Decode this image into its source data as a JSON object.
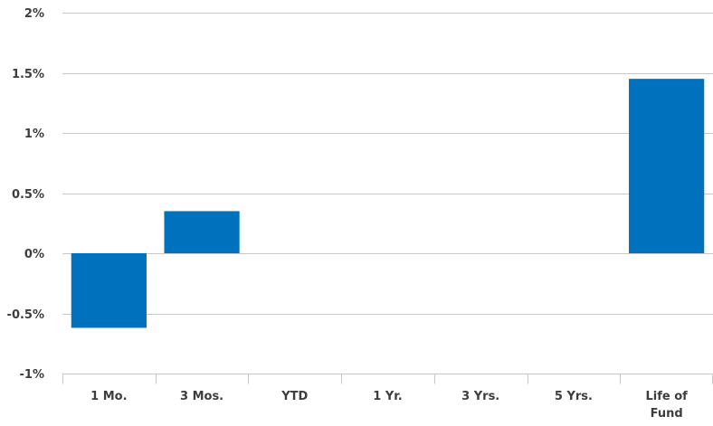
{
  "chart_data": {
    "type": "bar",
    "title": "",
    "xlabel": "",
    "ylabel": "",
    "categories": [
      "1 Mo.",
      "3 Mos.",
      "YTD",
      "1 Yr.",
      "3 Yrs.",
      "5 Yrs.",
      "Life of Fund"
    ],
    "values": [
      -0.62,
      0.35,
      null,
      null,
      null,
      null,
      1.45
    ],
    "ylim": [
      -1,
      2
    ],
    "yticks": [
      2,
      1.5,
      1,
      0.5,
      0,
      -0.5,
      -1
    ],
    "ytick_labels": [
      "2%",
      "1.5%",
      "1%",
      "0.5%",
      "0%",
      "-0.5%",
      "-1%"
    ],
    "bar_color": "#0071bc",
    "grid": true,
    "legend": "none"
  }
}
